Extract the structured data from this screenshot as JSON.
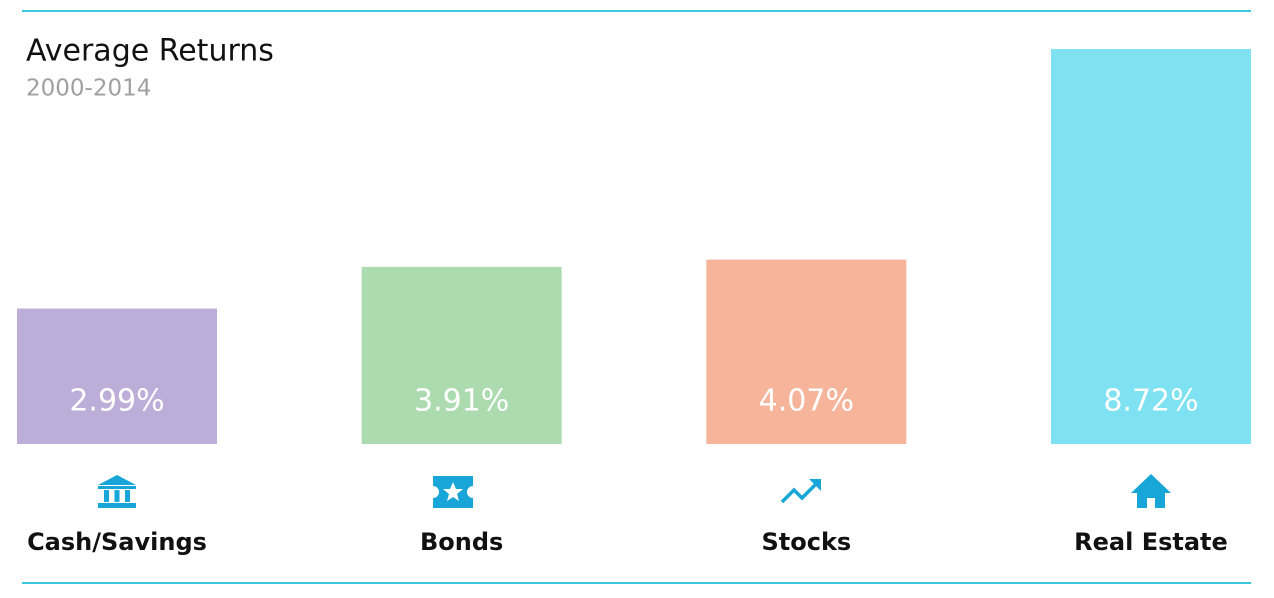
{
  "chart_data": {
    "type": "bar",
    "title": "Average Returns",
    "subtitle": "2000-2014",
    "categories": [
      "Cash/Savings",
      "Bonds",
      "Stocks",
      "Real Estate"
    ],
    "values": [
      2.99,
      3.91,
      4.07,
      8.72
    ],
    "value_labels": [
      "2.99%",
      "3.91%",
      "4.07%",
      "8.72%"
    ],
    "colors": [
      "#bdaed9",
      "#acdbb0",
      "#f6b59b",
      "#7fe2f3"
    ]
  }
}
